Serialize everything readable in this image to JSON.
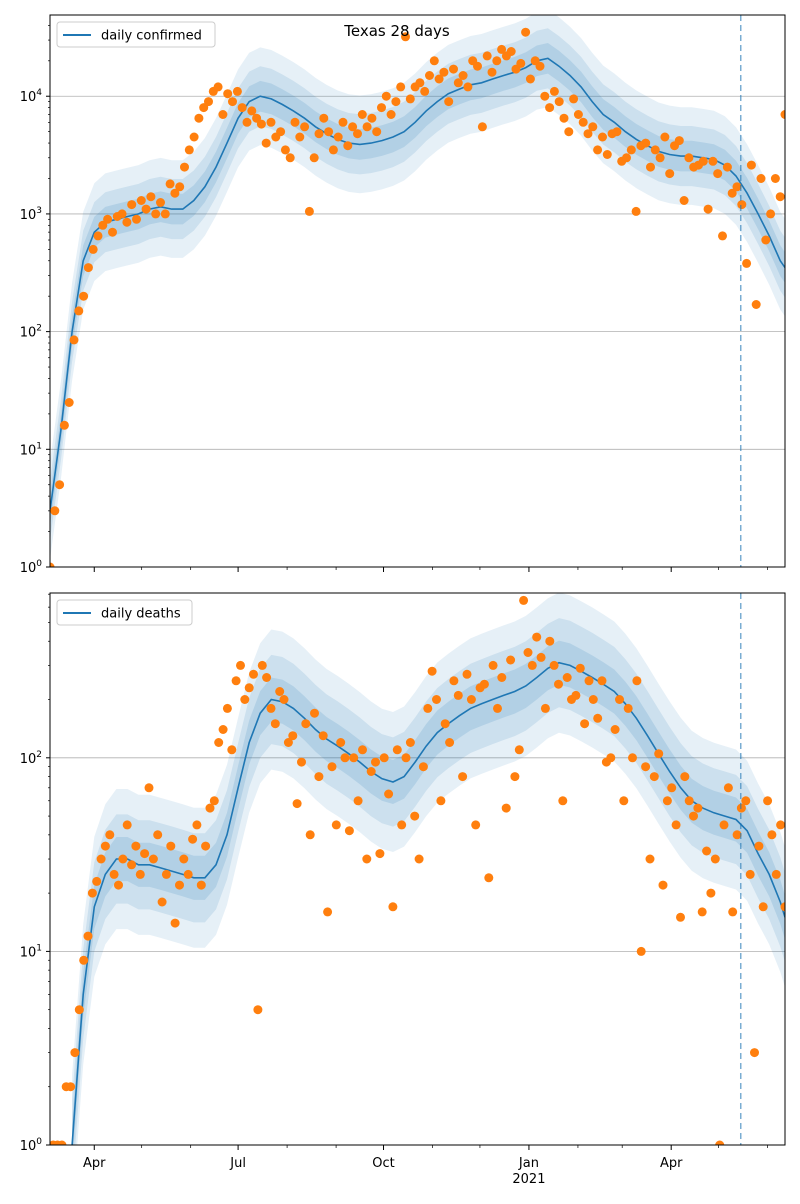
{
  "title": "Texas 28 days",
  "chart_data": [
    {
      "type": "line",
      "panel": "top",
      "title": "Texas 28 days",
      "legend": {
        "label": "daily confirmed",
        "placement": "top-left"
      },
      "xlim": [
        "2020-03-04",
        "2021-06-12"
      ],
      "ylim": [
        1,
        49000
      ],
      "yscale": "log",
      "grid": "y-major",
      "yticks": [
        {
          "value": 1,
          "base": "10",
          "exp": "0"
        },
        {
          "value": 10,
          "base": "10",
          "exp": "1"
        },
        {
          "value": 100,
          "base": "10",
          "exp": "2"
        },
        {
          "value": 1000,
          "base": "10",
          "exp": "3"
        },
        {
          "value": 10000,
          "base": "10",
          "exp": "4"
        }
      ],
      "forecast_marker_date": "2021-05-15",
      "band_factors": [
        1.35,
        1.8,
        2.6
      ],
      "trend_start": "2020-03-04",
      "trend_step_days": 7,
      "trend": [
        3,
        15,
        100,
        400,
        700,
        850,
        900,
        950,
        1000,
        1100,
        1150,
        1100,
        1100,
        1300,
        1700,
        2500,
        4000,
        6500,
        9000,
        10000,
        9500,
        8500,
        7500,
        6500,
        5500,
        4800,
        4300,
        4000,
        3900,
        4000,
        4200,
        4500,
        5000,
        6000,
        7500,
        9000,
        10500,
        11500,
        12500,
        13000,
        14000,
        15000,
        16000,
        17500,
        20000,
        21000,
        18000,
        15000,
        12000,
        9000,
        7000,
        6000,
        5000,
        4300,
        3800,
        3400,
        3200,
        3100,
        3100,
        3000,
        2900,
        2600,
        2100,
        1500,
        1000,
        650,
        400,
        350
      ],
      "observed_series": "daily confirmed (points)",
      "observed": [
        1,
        3,
        5,
        16,
        25,
        85,
        150,
        200,
        350,
        500,
        650,
        800,
        900,
        700,
        950,
        1000,
        850,
        1200,
        900,
        1300,
        1100,
        1400,
        1000,
        1250,
        1000,
        1800,
        1500,
        1700,
        2500,
        3500,
        4500,
        6500,
        8000,
        9000,
        11000,
        12000,
        7000,
        10500,
        9000,
        11000,
        8000,
        6000,
        7500,
        6500,
        5800,
        4000,
        6000,
        4500,
        5000,
        3500,
        3000,
        6000,
        4500,
        5500,
        1050,
        3000,
        4800,
        6500,
        5000,
        3500,
        4500,
        6000,
        3800,
        5500,
        4800,
        7000,
        5500,
        6500,
        5000,
        8000,
        10000,
        7000,
        9000,
        12000,
        32000,
        9500,
        12000,
        13000,
        11000,
        15000,
        20000,
        14000,
        16000,
        9000,
        17000,
        13000,
        15000,
        12000,
        20000,
        18000,
        5500,
        22000,
        16000,
        20000,
        25000,
        22000,
        24000,
        17000,
        19000,
        35000,
        14000,
        20000,
        18000,
        10000,
        8000,
        11000,
        9000,
        6500,
        5000,
        9500,
        7000,
        6000,
        4800,
        5500,
        3500,
        4500,
        3200,
        4800,
        5000,
        2800,
        3000,
        3500,
        1050,
        3800,
        4000,
        2500,
        3500,
        3000,
        4500,
        2200,
        3800,
        4200,
        1300,
        3000,
        2500,
        2600,
        2800,
        1100,
        2800,
        2200,
        650,
        2500,
        1500,
        1700,
        1200,
        380,
        2600,
        170,
        2000,
        600,
        1000,
        2000,
        1400,
        7000
      ]
    },
    {
      "type": "line",
      "panel": "bottom",
      "legend": {
        "label": "daily deaths",
        "placement": "top-left"
      },
      "xlim": [
        "2020-03-04",
        "2021-06-12"
      ],
      "ylim": [
        1,
        710
      ],
      "yscale": "log",
      "grid": "y-major",
      "yticks": [
        {
          "value": 1,
          "base": "10",
          "exp": "0"
        },
        {
          "value": 10,
          "base": "10",
          "exp": "1"
        },
        {
          "value": 100,
          "base": "10",
          "exp": "2"
        }
      ],
      "forecast_marker_date": "2021-05-15",
      "band_factors": [
        1.3,
        1.7,
        2.3
      ],
      "trend_start": "2020-03-18",
      "trend_step_days": 7,
      "trend": [
        1,
        6,
        17,
        25,
        30,
        30,
        28,
        28,
        27,
        26,
        25,
        24,
        24,
        28,
        40,
        70,
        120,
        170,
        200,
        195,
        180,
        160,
        140,
        125,
        115,
        105,
        95,
        85,
        78,
        75,
        80,
        95,
        115,
        135,
        150,
        165,
        180,
        190,
        200,
        210,
        220,
        235,
        260,
        290,
        310,
        300,
        280,
        260,
        240,
        220,
        190,
        160,
        130,
        105,
        85,
        70,
        60,
        55,
        52,
        50,
        48,
        42,
        32,
        25,
        18,
        15
      ],
      "observed_series": "daily deaths (points)",
      "observed": [
        1,
        1,
        1,
        2,
        2,
        3,
        5,
        9,
        12,
        20,
        23,
        30,
        35,
        40,
        25,
        22,
        30,
        45,
        28,
        35,
        25,
        32,
        70,
        30,
        40,
        18,
        25,
        35,
        14,
        22,
        30,
        25,
        38,
        45,
        22,
        35,
        55,
        60,
        120,
        140,
        180,
        110,
        250,
        300,
        200,
        230,
        270,
        5,
        300,
        260,
        180,
        150,
        220,
        200,
        120,
        130,
        58,
        95,
        150,
        40,
        170,
        80,
        130,
        16,
        90,
        45,
        120,
        100,
        42,
        100,
        60,
        110,
        30,
        85,
        95,
        32,
        100,
        65,
        17,
        110,
        45,
        100,
        120,
        50,
        30,
        90,
        180,
        280,
        200,
        60,
        150,
        120,
        250,
        210,
        80,
        270,
        200,
        45,
        230,
        240,
        24,
        300,
        180,
        260,
        55,
        320,
        80,
        110,
        650,
        350,
        300,
        420,
        330,
        180,
        400,
        300,
        240,
        60,
        260,
        200,
        210,
        290,
        150,
        250,
        200,
        160,
        250,
        95,
        100,
        140,
        200,
        60,
        180,
        100,
        250,
        10,
        90,
        30,
        80,
        105,
        22,
        60,
        70,
        45,
        15,
        80,
        60,
        50,
        55,
        16,
        33,
        20,
        30,
        1,
        45,
        70,
        16,
        40,
        55,
        60,
        25,
        3,
        35,
        17,
        60,
        40,
        25,
        45,
        17
      ]
    }
  ],
  "xticks": [
    {
      "date": "2020-04-01",
      "label": "Apr",
      "sublabel": ""
    },
    {
      "date": "2020-07-01",
      "label": "Jul",
      "sublabel": ""
    },
    {
      "date": "2020-10-01",
      "label": "Oct",
      "sublabel": ""
    },
    {
      "date": "2021-01-01",
      "label": "Jan",
      "sublabel": "2021"
    },
    {
      "date": "2021-04-01",
      "label": "Apr",
      "sublabel": ""
    }
  ],
  "minor_xticks": [
    "2020-05-01",
    "2020-06-01",
    "2020-08-01",
    "2020-09-01",
    "2020-11-01",
    "2020-12-01",
    "2021-02-01",
    "2021-03-01",
    "2021-05-01",
    "2021-06-01"
  ],
  "colors": {
    "trend": "#1f77b4",
    "band": "#1f77b4",
    "points": "#ff7f0e",
    "grid": "#b0b0b0",
    "marker": "#1f77b4"
  }
}
